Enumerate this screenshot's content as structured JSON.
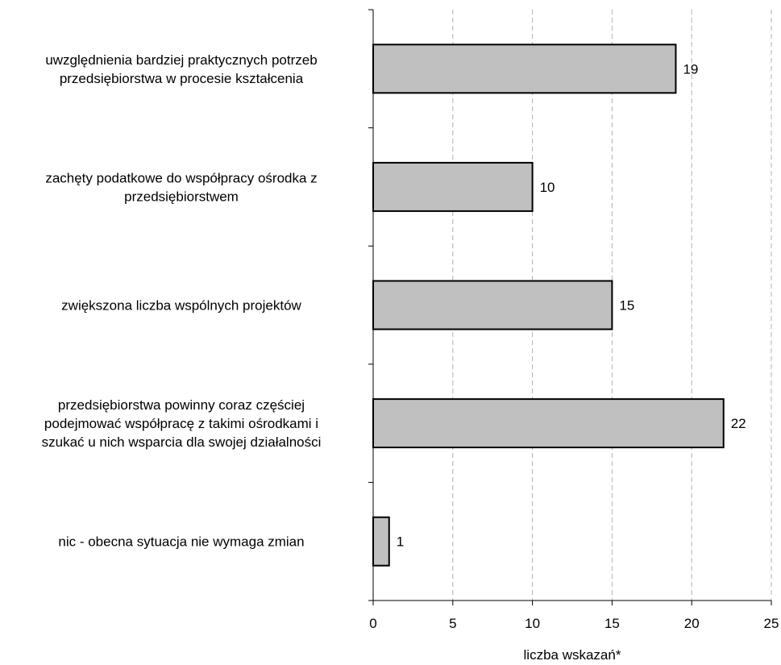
{
  "chart_data": {
    "type": "bar",
    "orientation": "horizontal",
    "categories": [
      [
        "uwzględnienia bardziej praktycznych potrzeb",
        "przedsiębiorstwa w procesie kształcenia"
      ],
      [
        "zachęty podatkowe do współpracy ośrodka z",
        "przedsiębiorstwem"
      ],
      [
        "zwiększona liczba wspólnych projektów"
      ],
      [
        "przedsiębiorstwa powinny coraz częściej",
        "podejmować współpracę z takimi ośrodkami i",
        "szukać u nich wsparcia dla swojej działalności"
      ],
      [
        "nic - obecna sytuacja nie wymaga zmian"
      ]
    ],
    "values": [
      19,
      10,
      15,
      22,
      1
    ],
    "data_labels": [
      "19",
      "10",
      "15",
      "22",
      "1"
    ],
    "xlabel": "liczba wskazań*",
    "ylabel": "",
    "xlim": [
      0,
      25
    ],
    "x_ticks": [
      "0",
      "5",
      "10",
      "15",
      "20",
      "25"
    ],
    "grid": "vertical dashed",
    "bar_color": "#c0c0c0",
    "bar_edge_color": "#000000",
    "grid_color": "#b0b0b0"
  }
}
